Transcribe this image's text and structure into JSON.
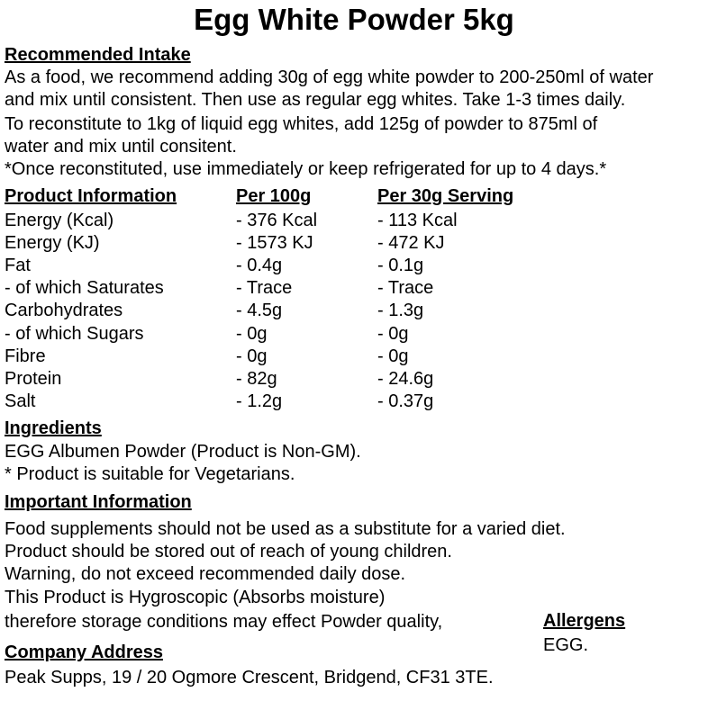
{
  "title": "Egg White Powder 5kg",
  "recommended_intake": {
    "heading": "Recommended Intake",
    "lines": [
      "As a food, we recommend adding 30g of egg white powder to 200-250ml of water",
      "and mix until consistent. Then use as regular egg whites. Take 1-3 times daily.",
      "To reconstitute to 1kg of liquid egg whites, add 125g of powder to 875ml of",
      "water and mix until consitent.",
      "*Once reconstituted, use immediately or keep refrigerated for up to 4 days.*"
    ]
  },
  "nutrition": {
    "headers": [
      "Product Information",
      "Per 100g",
      "Per 30g Serving"
    ],
    "rows": [
      [
        "Energy (Kcal)",
        "- 376 Kcal",
        "- 113 Kcal"
      ],
      [
        "Energy (KJ)",
        "- 1573 KJ",
        "- 472 KJ"
      ],
      [
        "Fat",
        "- 0.4g",
        "- 0.1g"
      ],
      [
        "- of which Saturates",
        "- Trace",
        "- Trace"
      ],
      [
        "Carbohydrates",
        "- 4.5g",
        "- 1.3g"
      ],
      [
        "- of which Sugars",
        "- 0g",
        "- 0g"
      ],
      [
        "Fibre",
        "- 0g",
        "- 0g"
      ],
      [
        "Protein",
        "- 82g",
        "- 24.6g"
      ],
      [
        "Salt",
        "- 1.2g",
        "- 0.37g"
      ]
    ]
  },
  "ingredients": {
    "heading": "Ingredients",
    "lines": [
      "EGG Albumen Powder (Product is Non-GM).",
      "* Product is suitable for Vegetarians."
    ]
  },
  "important_information": {
    "heading": "Important Information",
    "lines": [
      "Food supplements should not be used as a substitute for a varied diet.",
      "Product should be stored out of reach of young children.",
      "Warning, do not exceed recommended daily dose.",
      "This Product is Hygroscopic (Absorbs moisture)",
      "therefore storage conditions may effect Powder quality,"
    ]
  },
  "allergens": {
    "heading": "Allergens",
    "text": "EGG."
  },
  "company_address": {
    "heading": "Company Address",
    "text": "Peak Supps, 19 / 20 Ogmore Crescent, Bridgend, CF31 3TE."
  }
}
